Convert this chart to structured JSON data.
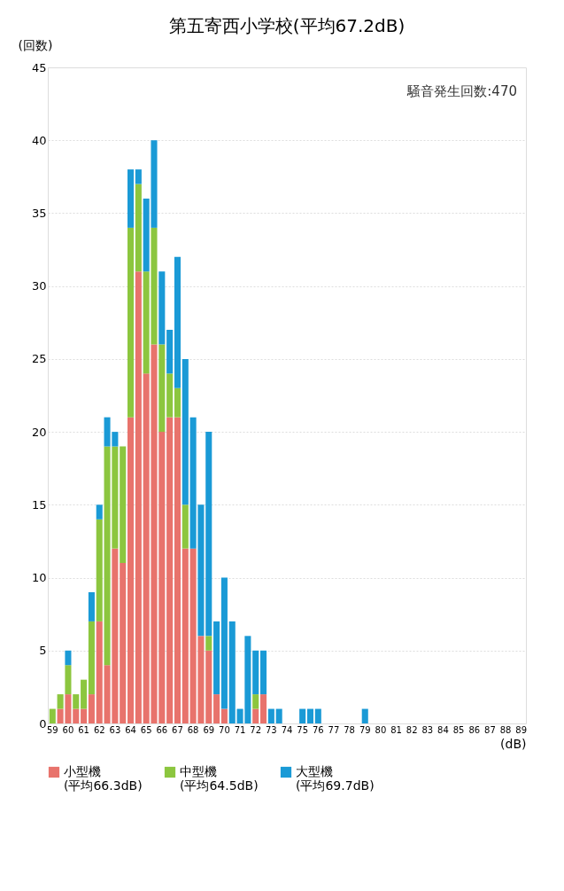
{
  "chart_data": {
    "type": "bar",
    "title": "第五寄西小学校(平均67.2dB)",
    "xlabel": "(dB)",
    "ylabel": "(回数)",
    "categories": [
      "59",
      null,
      "60",
      null,
      "61",
      null,
      "62",
      null,
      "63",
      null,
      "64",
      null,
      "65",
      null,
      "66",
      null,
      "67",
      null,
      "68",
      null,
      "69",
      null,
      "70",
      null,
      "71",
      null,
      "72",
      null,
      "73",
      null,
      "74",
      null,
      "75",
      null,
      "76",
      null,
      "77",
      null,
      "78",
      null,
      "79",
      null,
      "80",
      null,
      "81",
      null,
      "82",
      null,
      "83",
      null,
      "84",
      null,
      "85",
      null,
      "86",
      null,
      "87",
      null,
      "88",
      null,
      "89"
    ],
    "stacked": true,
    "series": [
      {
        "name": "小型機\n(平均66.3dB)",
        "color": "#e8736c",
        "values": [
          null,
          1,
          2,
          1,
          1,
          2,
          7,
          4,
          12,
          11,
          21,
          31,
          24,
          26,
          20,
          21,
          21,
          12,
          12,
          6,
          5,
          2,
          1,
          null,
          null,
          null,
          1,
          2,
          null,
          null,
          null,
          null,
          null,
          null,
          null,
          null,
          null,
          null,
          null,
          null,
          null,
          null,
          null,
          null,
          null,
          null,
          null,
          null,
          null,
          null,
          null,
          null,
          null,
          null,
          null,
          null,
          null,
          null,
          null,
          null,
          null
        ]
      },
      {
        "name": "中型機\n(平均64.5dB)",
        "color": "#8cc63f",
        "values": [
          1,
          1,
          2,
          1,
          2,
          5,
          7,
          15,
          7,
          8,
          13,
          6,
          7,
          8,
          6,
          3,
          2,
          3,
          null,
          null,
          1,
          null,
          null,
          null,
          null,
          null,
          1,
          null,
          null,
          null,
          null,
          null,
          null,
          null,
          null,
          null,
          null,
          null,
          null,
          null,
          null,
          null,
          null,
          null,
          null,
          null,
          null,
          null,
          null,
          null,
          null,
          null,
          null,
          null,
          null,
          null,
          null,
          null,
          null,
          null,
          null
        ]
      },
      {
        "name": "大型機\n(平均69.7dB)",
        "color": "#1a9ad6",
        "values": [
          null,
          null,
          1,
          null,
          null,
          2,
          1,
          2,
          1,
          null,
          4,
          1,
          5,
          6,
          5,
          3,
          9,
          10,
          9,
          9,
          14,
          5,
          9,
          7,
          1,
          6,
          3,
          3,
          1,
          1,
          null,
          null,
          1,
          1,
          1,
          null,
          null,
          null,
          null,
          null,
          1,
          null,
          null,
          null,
          null,
          null,
          null,
          null,
          null,
          null,
          null,
          null,
          null,
          null,
          null,
          null,
          null,
          null,
          null,
          null,
          null
        ]
      }
    ],
    "ylim": [
      0,
      45
    ],
    "yticks": [
      0,
      5,
      10,
      15,
      20,
      25,
      30,
      35,
      40,
      45
    ],
    "grid": "y",
    "legend": "bottom",
    "annotations": [
      "騒音発生回数:470"
    ]
  }
}
